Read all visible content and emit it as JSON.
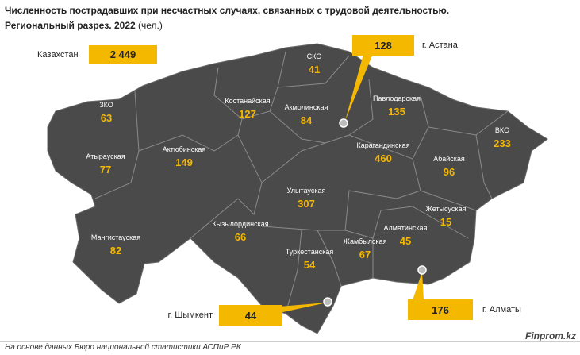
{
  "header": {
    "title": "Численность пострадавших при несчастных случаях, связанных с трудовой деятельностью.",
    "subtitle_bold": "Региональный разрез. 2022",
    "subtitle_unit": "(чел.)"
  },
  "total": {
    "name": "Казахстан",
    "value": "2 449"
  },
  "regions": [
    {
      "name": "СКО",
      "value": 41
    },
    {
      "name": "Костанайская",
      "value": 127
    },
    {
      "name": "Акмолинская",
      "value": 84
    },
    {
      "name": "Павлодарская",
      "value": 135
    },
    {
      "name": "ЗКО",
      "value": 63
    },
    {
      "name": "Атырауская",
      "value": 77
    },
    {
      "name": "Актюбинская",
      "value": 149
    },
    {
      "name": "Карагандинская",
      "value": 460
    },
    {
      "name": "ВКО",
      "value": 233
    },
    {
      "name": "Абайская",
      "value": 96
    },
    {
      "name": "Улытауская",
      "value": 307
    },
    {
      "name": "Мангистауская",
      "value": 82
    },
    {
      "name": "Кызылординская",
      "value": 66
    },
    {
      "name": "Жетысуская",
      "value": 15
    },
    {
      "name": "Алматинская",
      "value": 45
    },
    {
      "name": "Жамбылская",
      "value": 67
    },
    {
      "name": "Туркестанская",
      "value": 54
    }
  ],
  "cities": [
    {
      "name": "г. Астана",
      "value": 128
    },
    {
      "name": "г. Алматы",
      "value": 176
    },
    {
      "name": "г. Шымкент",
      "value": 44
    }
  ],
  "footer": {
    "source": "На основе данных Бюро национальной статистики АСПиР РК",
    "brand": "Finprom.kz"
  }
}
